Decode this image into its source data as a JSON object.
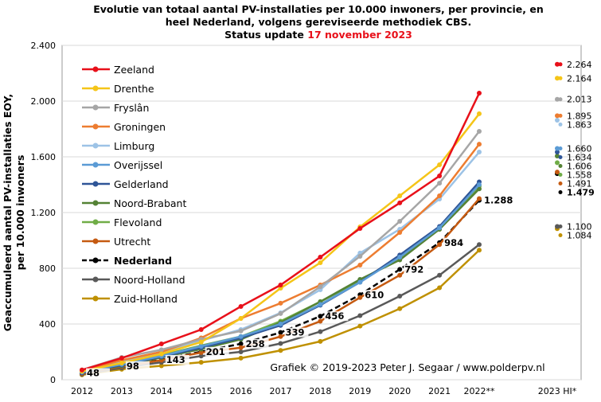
{
  "chart_data": {
    "type": "line",
    "title_lines": [
      "Evolutie van totaal aantal PV-installaties per 10.000 inwoners, per provincie, en",
      "heel Nederland, volgens gereviseerde methodiek CBS."
    ],
    "status_prefix": "Status update",
    "status_date": "17 november 2023",
    "y_label_lines": [
      "Geaccumuleerd aantal PV-installaties EOY,",
      "per 10.000 inwoners"
    ],
    "credit": "Grafiek © 2019-2023 Peter J. Segaar / www.polderpv.nl",
    "categories": [
      "2012",
      "2013",
      "2014",
      "2015",
      "2016",
      "2017",
      "2018",
      "2019",
      "2020",
      "2021",
      "2022**"
    ],
    "hi_category": "2023 HI*",
    "ylim": [
      0,
      2400
    ],
    "yticks": [
      {
        "value": 0,
        "label": "0"
      },
      {
        "value": 400,
        "label": "400"
      },
      {
        "value": 800,
        "label": "800"
      },
      {
        "value": 1200,
        "label": "1.200"
      },
      {
        "value": 1600,
        "label": "1.600"
      },
      {
        "value": 2000,
        "label": "2.000"
      },
      {
        "value": 2400,
        "label": "2.400"
      }
    ],
    "grid": true,
    "series": [
      {
        "name": "Zeeland",
        "color": "#e8101a",
        "values": [
          70,
          155,
          257,
          360,
          526,
          680,
          880,
          1086,
          1269,
          1463,
          2057
        ],
        "hi_value": 2264,
        "hi_label": "2.264"
      },
      {
        "name": "Drenthe",
        "color": "#f5c518",
        "values": [
          60,
          120,
          185,
          270,
          440,
          657,
          840,
          1097,
          1320,
          1543,
          1909
        ],
        "hi_value": 2164,
        "hi_label": "2.164"
      },
      {
        "name": "Fryslân",
        "color": "#a6a6a6",
        "values": [
          70,
          160,
          215,
          290,
          350,
          475,
          668,
          886,
          1137,
          1411,
          1783
        ],
        "hi_value": 2013,
        "hi_label": "2.013"
      },
      {
        "name": "Groningen",
        "color": "#ed7d31",
        "values": [
          65,
          140,
          200,
          300,
          440,
          549,
          680,
          823,
          1057,
          1320,
          1691
        ],
        "hi_value": 1895,
        "hi_label": "1.895"
      },
      {
        "name": "Limburg",
        "color": "#9dc3e6",
        "values": [
          60,
          130,
          200,
          280,
          360,
          480,
          646,
          909,
          1080,
          1297,
          1634
        ],
        "hi_value": 1863,
        "hi_label": "1.863"
      },
      {
        "name": "Overijssel",
        "color": "#5b9bd5",
        "values": [
          55,
          110,
          170,
          240,
          310,
          400,
          540,
          700,
          880,
          1090,
          1400
        ],
        "hi_value": 1660,
        "hi_label": "1.660"
      },
      {
        "name": "Gelderland",
        "color": "#2f5597",
        "values": [
          50,
          105,
          165,
          230,
          300,
          390,
          535,
          700,
          895,
          1100,
          1420
        ],
        "hi_value": 1634,
        "hi_label": "1.634"
      },
      {
        "name": "Noord-Brabant",
        "color": "#548235",
        "values": [
          50,
          100,
          160,
          220,
          290,
          410,
          560,
          720,
          860,
          1080,
          1370
        ],
        "hi_value": 1606,
        "hi_label": "1.606"
      },
      {
        "name": "Flevoland",
        "color": "#70ad47",
        "values": [
          55,
          115,
          175,
          245,
          310,
          420,
          560,
          710,
          880,
          1080,
          1390
        ],
        "hi_value": 1558,
        "hi_label": "1.558"
      },
      {
        "name": "Utrecht",
        "color": "#c55a11",
        "values": [
          45,
          95,
          140,
          195,
          230,
          310,
          420,
          590,
          750,
          970,
          1300
        ],
        "hi_value": 1491,
        "hi_label": "1.491"
      },
      {
        "name": "Nederland",
        "color": "#000000",
        "style": "dashed",
        "values": [
          48,
          98,
          143,
          201,
          258,
          339,
          456,
          610,
          792,
          984,
          1288
        ],
        "value_labels": [
          "48",
          "98",
          "143",
          "201",
          "258",
          "339",
          "456",
          "610",
          "792",
          "984",
          "1.288"
        ],
        "hi_value": 1479,
        "hi_label": "1.479"
      },
      {
        "name": "Noord-Holland",
        "color": "#595959",
        "values": [
          40,
          85,
          125,
          170,
          200,
          260,
          345,
          460,
          600,
          750,
          970
        ],
        "hi_value": 1100,
        "hi_label": "1.100"
      },
      {
        "name": "Zuid-Holland",
        "color": "#bf9000",
        "values": [
          35,
          75,
          100,
          125,
          155,
          210,
          275,
          385,
          510,
          660,
          930
        ],
        "hi_value": 1084,
        "hi_label": "1.084"
      }
    ]
  }
}
